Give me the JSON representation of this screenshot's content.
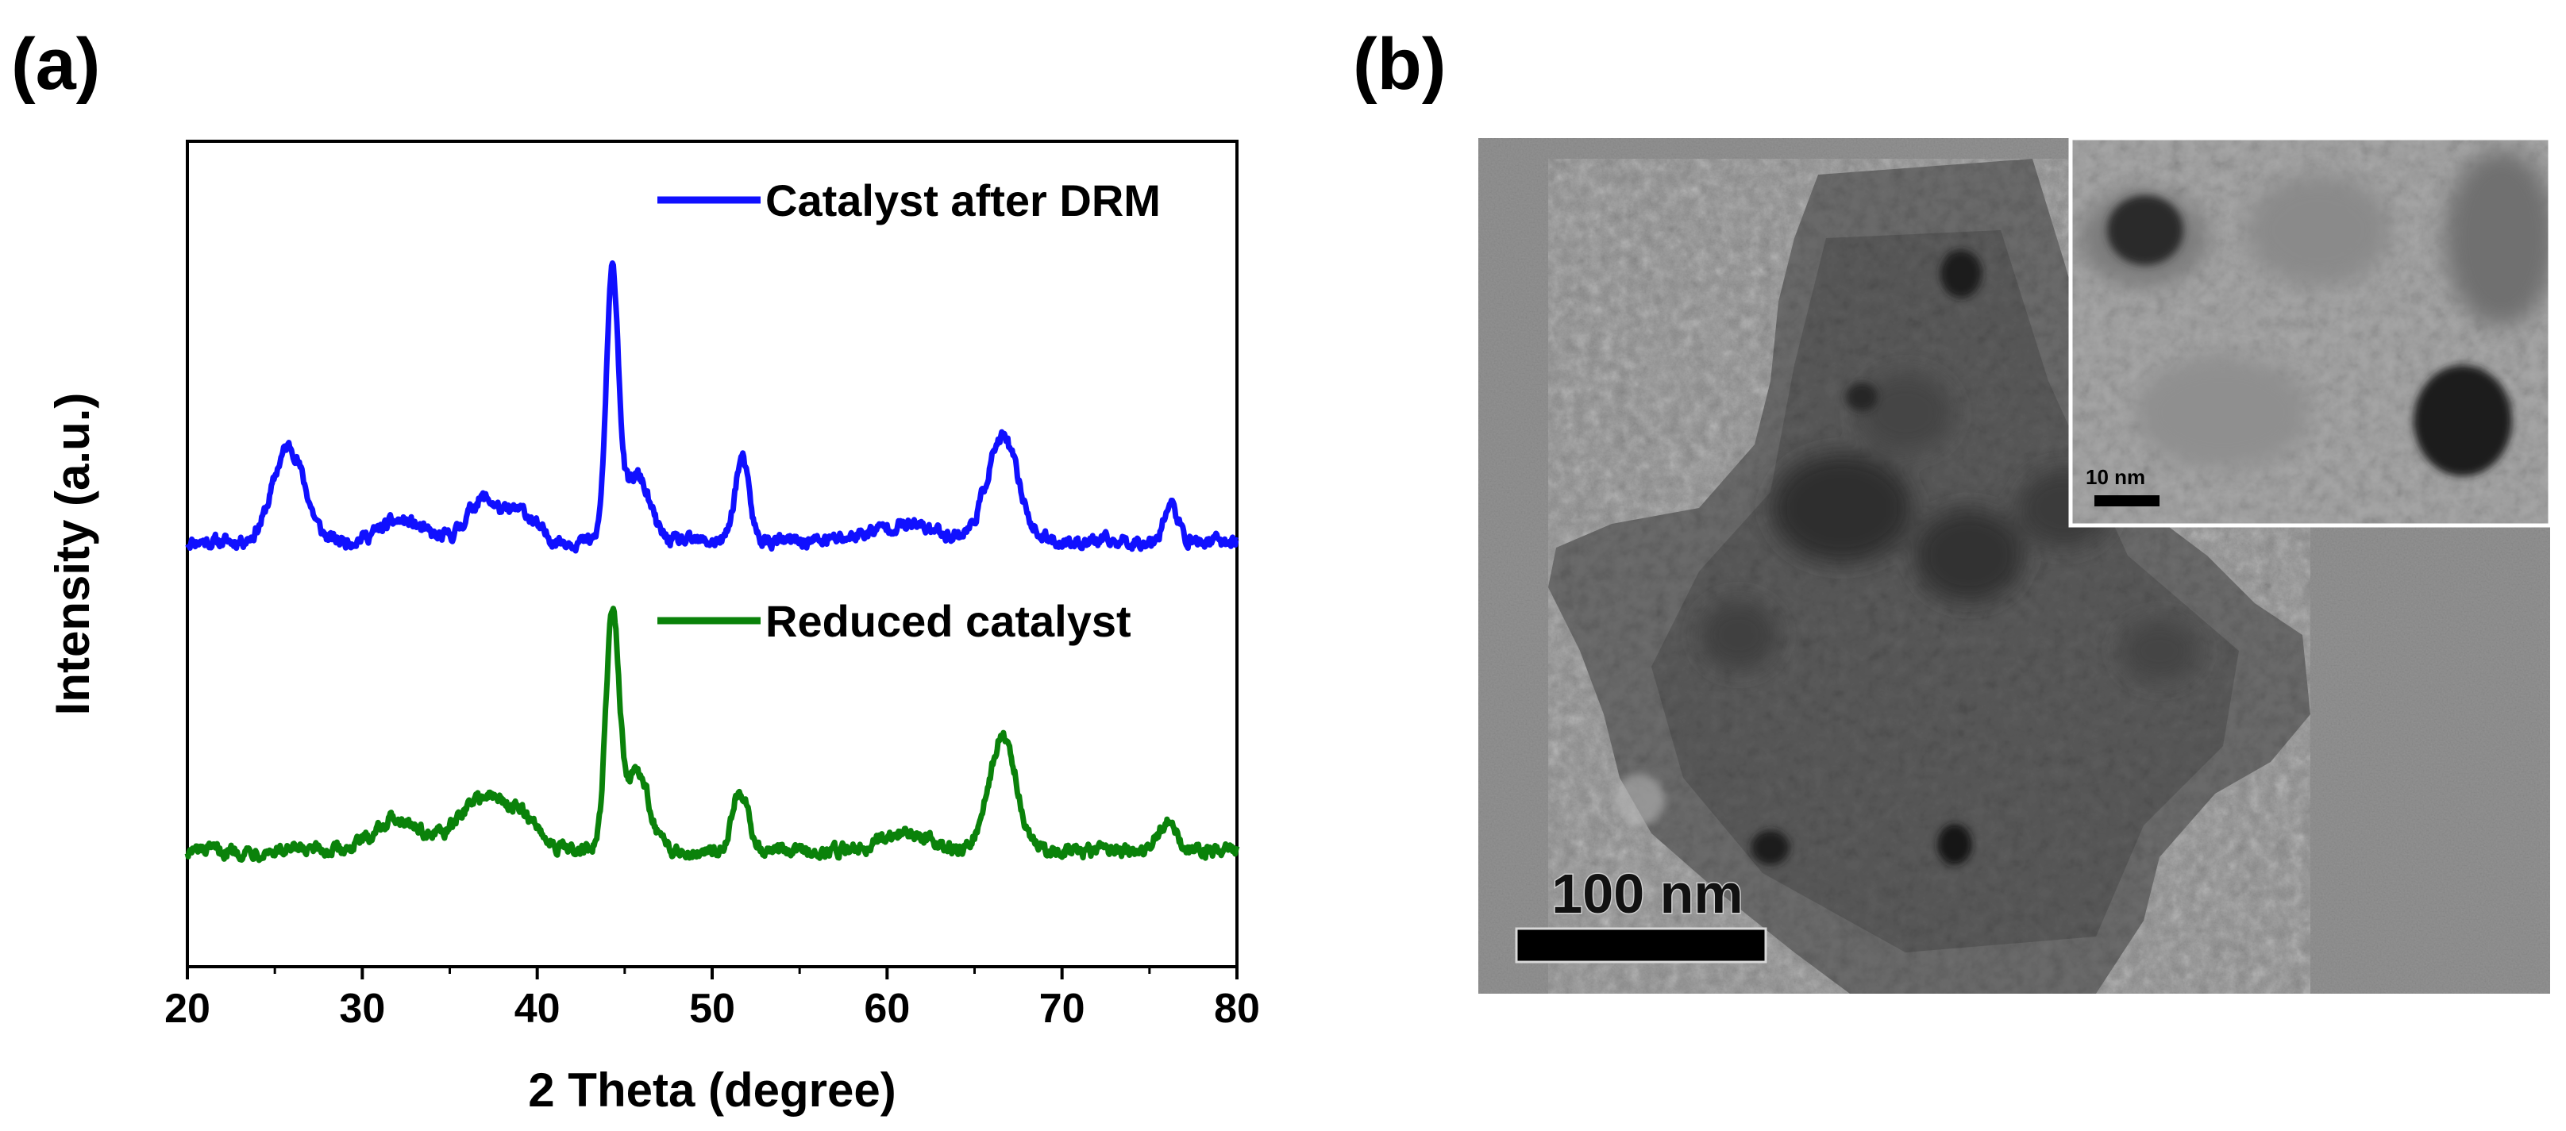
{
  "panels": {
    "a": {
      "label": "(a)"
    },
    "b": {
      "label": "(b)",
      "scale_bar_label": "100 nm",
      "inset_scale_bar_label": "10 nm"
    }
  },
  "chart_data": {
    "type": "line",
    "title": "",
    "xlabel": "2 Theta (degree)",
    "ylabel": "Intensity (a.u.)",
    "xlim": [
      20,
      80
    ],
    "ylim": [
      0,
      1.0
    ],
    "xticks": [
      20,
      30,
      40,
      50,
      60,
      70,
      80
    ],
    "xtick_labels": [
      "20",
      "30",
      "40",
      "50",
      "60",
      "70",
      "80"
    ],
    "yticks_shown": false,
    "grid": false,
    "legend_placement": "inline-above-each-trace",
    "series": [
      {
        "name": "Catalyst after DRM",
        "color": "#1010ff",
        "baseline": 0.515,
        "peaks": [
          {
            "two_theta": 25.8,
            "height": 0.115,
            "width": 0.9
          },
          {
            "two_theta": 32.2,
            "height": 0.025,
            "width": 1.2
          },
          {
            "two_theta": 36.9,
            "height": 0.052,
            "width": 0.9
          },
          {
            "two_theta": 39.1,
            "height": 0.035,
            "width": 0.8
          },
          {
            "two_theta": 44.3,
            "height": 0.32,
            "width": 0.35
          },
          {
            "two_theta": 45.7,
            "height": 0.08,
            "width": 0.7
          },
          {
            "two_theta": 51.7,
            "height": 0.1,
            "width": 0.4
          },
          {
            "two_theta": 61.0,
            "height": 0.02,
            "width": 2.0
          },
          {
            "two_theta": 66.6,
            "height": 0.125,
            "width": 0.9
          },
          {
            "two_theta": 76.2,
            "height": 0.045,
            "width": 0.4
          }
        ]
      },
      {
        "name": "Reduced catalyst",
        "color": "#0a820a",
        "baseline": 0.14,
        "peaks": [
          {
            "two_theta": 32.0,
            "height": 0.04,
            "width": 1.3
          },
          {
            "two_theta": 36.9,
            "height": 0.065,
            "width": 1.4
          },
          {
            "two_theta": 39.3,
            "height": 0.03,
            "width": 1.0
          },
          {
            "two_theta": 44.3,
            "height": 0.28,
            "width": 0.38
          },
          {
            "two_theta": 45.7,
            "height": 0.095,
            "width": 0.7
          },
          {
            "two_theta": 51.6,
            "height": 0.075,
            "width": 0.45
          },
          {
            "two_theta": 61.0,
            "height": 0.022,
            "width": 1.5
          },
          {
            "two_theta": 66.6,
            "height": 0.138,
            "width": 0.8
          },
          {
            "two_theta": 76.0,
            "height": 0.035,
            "width": 0.5
          }
        ]
      }
    ]
  },
  "colors": {
    "axis": "#000000",
    "tem_background": "#8e8e8e",
    "scale_bar": "#000000",
    "scale_text": "#111111"
  }
}
